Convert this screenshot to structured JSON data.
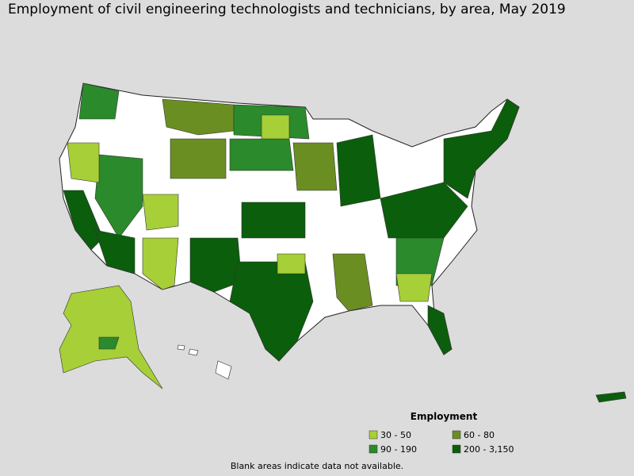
{
  "title": "Employment of civil engineering technologists and technicians, by area, May 2019",
  "legend": {
    "title": "Employment",
    "items": [
      {
        "label": "30 - 50",
        "color": "#a6cf38"
      },
      {
        "label": "60 - 80",
        "color": "#6b8e23"
      },
      {
        "label": "90 - 190",
        "color": "#2b8a2b"
      },
      {
        "label": "200 - 3,150",
        "color": "#0b5e0b"
      }
    ]
  },
  "footnote": "Blank areas indicate data not available."
}
